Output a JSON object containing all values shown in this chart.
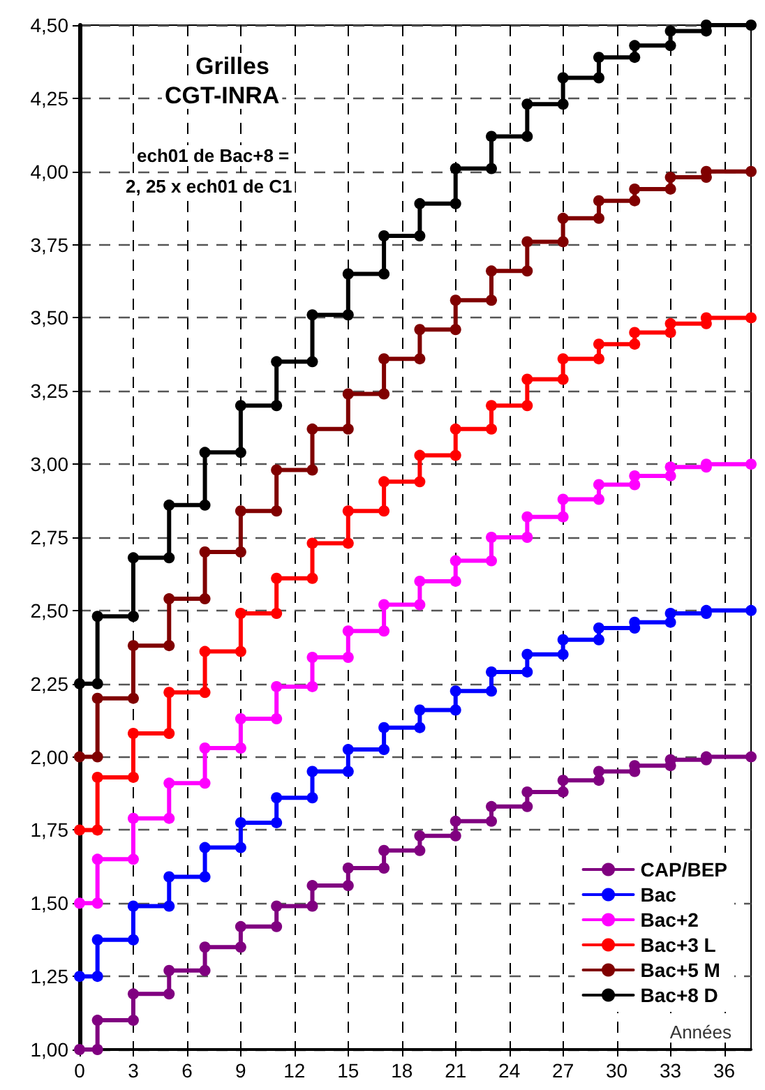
{
  "chart_data": {
    "type": "line",
    "title": "Grilles",
    "subtitle": "CGT-INRA",
    "annotations": [
      "ech01 de Bac+8 =",
      "2, 25 x ech01 de C1"
    ],
    "xlabel": "Années",
    "x": [
      0,
      1,
      1,
      3,
      3,
      5,
      5,
      7,
      7,
      9,
      9,
      11,
      11,
      13,
      13,
      15,
      15,
      17,
      17,
      19,
      19,
      21,
      21,
      23,
      23,
      25,
      25,
      27,
      27,
      29,
      29,
      31,
      31,
      33,
      33,
      35,
      35,
      37.5
    ],
    "series": [
      {
        "name": "CAP/BEP",
        "color": "#800080",
        "values": [
          1,
          1,
          1.1,
          1.1,
          1.19,
          1.19,
          1.27,
          1.27,
          1.35,
          1.35,
          1.42,
          1.42,
          1.49,
          1.49,
          1.56,
          1.56,
          1.62,
          1.62,
          1.68,
          1.68,
          1.73,
          1.73,
          1.78,
          1.78,
          1.83,
          1.83,
          1.88,
          1.88,
          1.92,
          1.92,
          1.95,
          1.95,
          1.97,
          1.97,
          1.99,
          1.99,
          2,
          2
        ]
      },
      {
        "name": "Bac",
        "color": "#0000ff",
        "values": [
          1.25,
          1.25,
          1.375,
          1.375,
          1.49,
          1.49,
          1.59,
          1.59,
          1.69,
          1.69,
          1.775,
          1.775,
          1.86,
          1.86,
          1.95,
          1.95,
          2.025,
          2.025,
          2.1,
          2.1,
          2.16,
          2.16,
          2.225,
          2.225,
          2.29,
          2.29,
          2.35,
          2.35,
          2.4,
          2.4,
          2.44,
          2.44,
          2.46,
          2.46,
          2.49,
          2.49,
          2.5,
          2.5
        ]
      },
      {
        "name": "Bac+2",
        "color": "#ff00ff",
        "values": [
          1.5,
          1.5,
          1.65,
          1.65,
          1.79,
          1.79,
          1.91,
          1.91,
          2.03,
          2.03,
          2.13,
          2.13,
          2.24,
          2.24,
          2.34,
          2.34,
          2.43,
          2.43,
          2.52,
          2.52,
          2.6,
          2.6,
          2.67,
          2.67,
          2.75,
          2.75,
          2.82,
          2.82,
          2.88,
          2.88,
          2.93,
          2.93,
          2.96,
          2.96,
          2.99,
          2.99,
          3,
          3
        ]
      },
      {
        "name": "Bac+3 L",
        "color": "#ff0000",
        "values": [
          1.75,
          1.75,
          1.93,
          1.93,
          2.08,
          2.08,
          2.22,
          2.22,
          2.36,
          2.36,
          2.49,
          2.49,
          2.61,
          2.61,
          2.73,
          2.73,
          2.84,
          2.84,
          2.94,
          2.94,
          3.03,
          3.03,
          3.12,
          3.12,
          3.2,
          3.2,
          3.29,
          3.29,
          3.36,
          3.36,
          3.41,
          3.41,
          3.45,
          3.45,
          3.48,
          3.48,
          3.5,
          3.5
        ]
      },
      {
        "name": "Bac+5 M",
        "color": "#800000",
        "values": [
          2,
          2,
          2.2,
          2.2,
          2.38,
          2.38,
          2.54,
          2.54,
          2.7,
          2.7,
          2.84,
          2.84,
          2.98,
          2.98,
          3.12,
          3.12,
          3.24,
          3.24,
          3.36,
          3.36,
          3.46,
          3.46,
          3.56,
          3.56,
          3.66,
          3.66,
          3.76,
          3.76,
          3.84,
          3.84,
          3.9,
          3.9,
          3.94,
          3.94,
          3.98,
          3.98,
          4,
          4
        ]
      },
      {
        "name": "Bac+8 D",
        "color": "#000000",
        "values": [
          2.25,
          2.25,
          2.48,
          2.48,
          2.68,
          2.68,
          2.86,
          2.86,
          3.04,
          3.04,
          3.2,
          3.2,
          3.35,
          3.35,
          3.51,
          3.51,
          3.65,
          3.65,
          3.78,
          3.78,
          3.89,
          3.89,
          4.01,
          4.01,
          4.12,
          4.12,
          4.23,
          4.23,
          4.32,
          4.32,
          4.39,
          4.39,
          4.43,
          4.43,
          4.48,
          4.48,
          4.5,
          4.5
        ]
      }
    ],
    "xlim": [
      0,
      37.5
    ],
    "xticks": [
      0,
      3,
      6,
      9,
      12,
      15,
      18,
      21,
      24,
      27,
      30,
      33,
      36
    ],
    "ylim": [
      1,
      4.5
    ],
    "yticks": [
      {
        "value": 1,
        "label": "1,00"
      },
      {
        "value": 1.25,
        "label": "1,25"
      },
      {
        "value": 1.5,
        "label": "1,50"
      },
      {
        "value": 1.75,
        "label": "1,75"
      },
      {
        "value": 2,
        "label": "2,00"
      },
      {
        "value": 2.25,
        "label": "2,25"
      },
      {
        "value": 2.5,
        "label": "2,50"
      },
      {
        "value": 2.75,
        "label": "2,75"
      },
      {
        "value": 3,
        "label": "3,00"
      },
      {
        "value": 3.25,
        "label": "3,25"
      },
      {
        "value": 3.5,
        "label": "3,50"
      },
      {
        "value": 3.75,
        "label": "3,75"
      },
      {
        "value": 4,
        "label": "4,00"
      },
      {
        "value": 4.25,
        "label": "4,25"
      },
      {
        "value": 4.5,
        "label": "4,50"
      }
    ],
    "grid": true,
    "legend": "bottom right",
    "marker": "circle"
  }
}
